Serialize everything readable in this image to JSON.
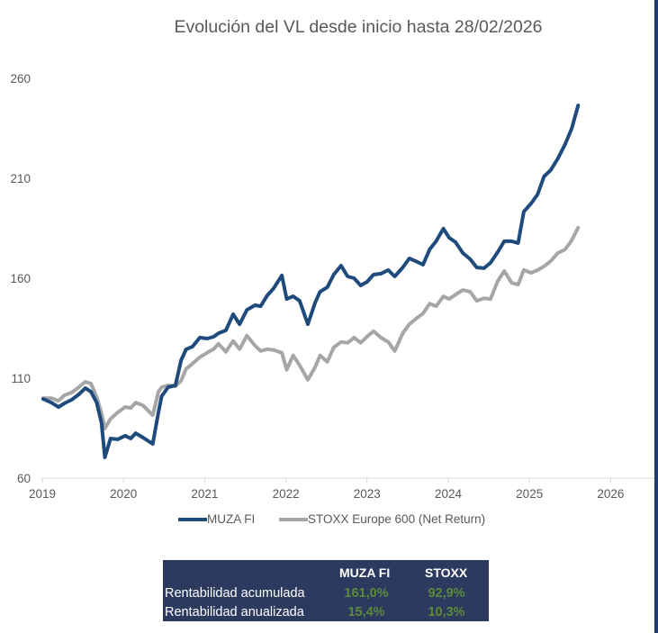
{
  "chart_data": {
    "type": "line",
    "title": "Evolución del VL desde inicio hasta 28/02/2026",
    "xlabel": "",
    "ylabel": "",
    "xlim": [
      2019,
      2026.55
    ],
    "ylim": [
      60,
      260
    ],
    "yticks": [
      60,
      110,
      160,
      210,
      260
    ],
    "xticks": [
      "2019",
      "2020",
      "2021",
      "2022",
      "2023",
      "2024",
      "2025",
      "2026"
    ],
    "grid": false,
    "legend_position": "bottom",
    "series": [
      {
        "name": "MUZA FI",
        "color": "#1f4a7c",
        "points": [
          [
            2019.01,
            99.6
          ],
          [
            2019.11,
            97.8
          ],
          [
            2019.2,
            95.6
          ],
          [
            2019.27,
            97.4
          ],
          [
            2019.36,
            99.2
          ],
          [
            2019.45,
            101.9
          ],
          [
            2019.53,
            105.0
          ],
          [
            2019.6,
            103.2
          ],
          [
            2019.67,
            97.8
          ],
          [
            2019.73,
            87.5
          ],
          [
            2019.77,
            70.4
          ],
          [
            2019.84,
            79.8
          ],
          [
            2019.93,
            79.4
          ],
          [
            2020.02,
            81.2
          ],
          [
            2020.09,
            79.8
          ],
          [
            2020.15,
            82.5
          ],
          [
            2020.24,
            80.3
          ],
          [
            2020.36,
            77.1
          ],
          [
            2020.43,
            92.9
          ],
          [
            2020.47,
            101.0
          ],
          [
            2020.55,
            105.5
          ],
          [
            2020.64,
            106.4
          ],
          [
            2020.71,
            119.0
          ],
          [
            2020.77,
            124.4
          ],
          [
            2020.85,
            125.8
          ],
          [
            2020.94,
            130.3
          ],
          [
            2021.03,
            129.8
          ],
          [
            2021.11,
            130.7
          ],
          [
            2021.17,
            132.5
          ],
          [
            2021.26,
            133.9
          ],
          [
            2021.35,
            142.0
          ],
          [
            2021.43,
            137.0
          ],
          [
            2021.52,
            144.2
          ],
          [
            2021.62,
            146.5
          ],
          [
            2021.69,
            146.0
          ],
          [
            2021.77,
            151.4
          ],
          [
            2021.85,
            155.0
          ],
          [
            2021.95,
            161.4
          ],
          [
            2022.01,
            149.6
          ],
          [
            2022.09,
            151.0
          ],
          [
            2022.17,
            148.7
          ],
          [
            2022.27,
            137.0
          ],
          [
            2022.36,
            147.8
          ],
          [
            2022.42,
            153.2
          ],
          [
            2022.51,
            155.5
          ],
          [
            2022.59,
            161.8
          ],
          [
            2022.68,
            166.3
          ],
          [
            2022.76,
            160.9
          ],
          [
            2022.84,
            160.0
          ],
          [
            2022.92,
            156.4
          ],
          [
            2023.0,
            158.2
          ],
          [
            2023.08,
            161.8
          ],
          [
            2023.17,
            162.3
          ],
          [
            2023.26,
            164.1
          ],
          [
            2023.34,
            160.9
          ],
          [
            2023.44,
            165.4
          ],
          [
            2023.52,
            169.9
          ],
          [
            2023.6,
            168.5
          ],
          [
            2023.69,
            166.8
          ],
          [
            2023.77,
            174.4
          ],
          [
            2023.85,
            178.5
          ],
          [
            2023.94,
            184.8
          ],
          [
            2024.01,
            180.3
          ],
          [
            2024.09,
            178.0
          ],
          [
            2024.18,
            172.6
          ],
          [
            2024.27,
            169.5
          ],
          [
            2024.35,
            165.4
          ],
          [
            2024.44,
            165.0
          ],
          [
            2024.52,
            167.7
          ],
          [
            2024.61,
            173.1
          ],
          [
            2024.69,
            178.5
          ],
          [
            2024.78,
            178.5
          ],
          [
            2024.86,
            177.6
          ],
          [
            2024.93,
            193.3
          ],
          [
            2025.02,
            197.4
          ],
          [
            2025.1,
            201.9
          ],
          [
            2025.18,
            210.9
          ],
          [
            2025.26,
            214.0
          ],
          [
            2025.35,
            219.9
          ],
          [
            2025.44,
            227.1
          ],
          [
            2025.52,
            234.8
          ],
          [
            2025.6,
            246.5
          ]
        ]
      },
      {
        "name": "STOXX Europe 600 (Net Return)",
        "color": "#a6a6a6",
        "points": [
          [
            2019.01,
            100.0
          ],
          [
            2019.11,
            100.0
          ],
          [
            2019.2,
            98.7
          ],
          [
            2019.27,
            101.4
          ],
          [
            2019.36,
            102.8
          ],
          [
            2019.45,
            105.5
          ],
          [
            2019.53,
            108.2
          ],
          [
            2019.6,
            107.3
          ],
          [
            2019.67,
            100.5
          ],
          [
            2019.73,
            92.4
          ],
          [
            2019.77,
            84.8
          ],
          [
            2019.84,
            89.7
          ],
          [
            2019.93,
            92.9
          ],
          [
            2020.02,
            95.6
          ],
          [
            2020.09,
            95.1
          ],
          [
            2020.15,
            97.8
          ],
          [
            2020.24,
            96.4
          ],
          [
            2020.36,
            91.5
          ],
          [
            2020.43,
            103.2
          ],
          [
            2020.47,
            105.5
          ],
          [
            2020.55,
            106.4
          ],
          [
            2020.64,
            106.0
          ],
          [
            2020.71,
            108.7
          ],
          [
            2020.77,
            114.6
          ],
          [
            2020.85,
            117.3
          ],
          [
            2020.94,
            120.5
          ],
          [
            2021.03,
            122.7
          ],
          [
            2021.11,
            124.5
          ],
          [
            2021.17,
            127.2
          ],
          [
            2021.26,
            123.2
          ],
          [
            2021.35,
            128.6
          ],
          [
            2021.43,
            124.5
          ],
          [
            2021.52,
            131.3
          ],
          [
            2021.62,
            126.3
          ],
          [
            2021.69,
            123.6
          ],
          [
            2021.77,
            124.5
          ],
          [
            2021.85,
            124.1
          ],
          [
            2021.95,
            122.7
          ],
          [
            2022.01,
            114.2
          ],
          [
            2022.09,
            121.4
          ],
          [
            2022.17,
            116.4
          ],
          [
            2022.27,
            109.2
          ],
          [
            2022.36,
            115.5
          ],
          [
            2022.42,
            121.4
          ],
          [
            2022.51,
            118.2
          ],
          [
            2022.59,
            125.4
          ],
          [
            2022.68,
            128.1
          ],
          [
            2022.76,
            127.7
          ],
          [
            2022.84,
            130.3
          ],
          [
            2022.92,
            127.7
          ],
          [
            2023.0,
            130.8
          ],
          [
            2023.08,
            133.5
          ],
          [
            2023.17,
            130.3
          ],
          [
            2023.26,
            128.1
          ],
          [
            2023.34,
            123.6
          ],
          [
            2023.44,
            132.5
          ],
          [
            2023.52,
            137.0
          ],
          [
            2023.6,
            139.7
          ],
          [
            2023.69,
            142.4
          ],
          [
            2023.77,
            147.3
          ],
          [
            2023.85,
            146.0
          ],
          [
            2023.94,
            150.9
          ],
          [
            2024.01,
            149.6
          ],
          [
            2024.09,
            151.8
          ],
          [
            2024.18,
            154.1
          ],
          [
            2024.27,
            153.2
          ],
          [
            2024.35,
            148.7
          ],
          [
            2024.44,
            150.0
          ],
          [
            2024.52,
            149.6
          ],
          [
            2024.61,
            158.6
          ],
          [
            2024.69,
            163.6
          ],
          [
            2024.78,
            157.7
          ],
          [
            2024.86,
            156.8
          ],
          [
            2024.93,
            164.1
          ],
          [
            2025.02,
            162.7
          ],
          [
            2025.1,
            164.1
          ],
          [
            2025.18,
            165.9
          ],
          [
            2025.26,
            168.5
          ],
          [
            2025.35,
            172.6
          ],
          [
            2025.44,
            174.4
          ],
          [
            2025.52,
            178.9
          ],
          [
            2025.6,
            185.3
          ]
        ]
      }
    ]
  },
  "stats_table": {
    "columns": [
      "MUZA FI",
      "STOXX"
    ],
    "rows": [
      {
        "label": "Rentabilidad acumulada",
        "values": [
          "161,0%",
          "92,9%"
        ]
      },
      {
        "label": "Rentabilidad anualizada",
        "values": [
          "15,4%",
          "10,3%"
        ]
      }
    ],
    "value_color": "#5b8a3c",
    "background": "#2b3a5e"
  }
}
